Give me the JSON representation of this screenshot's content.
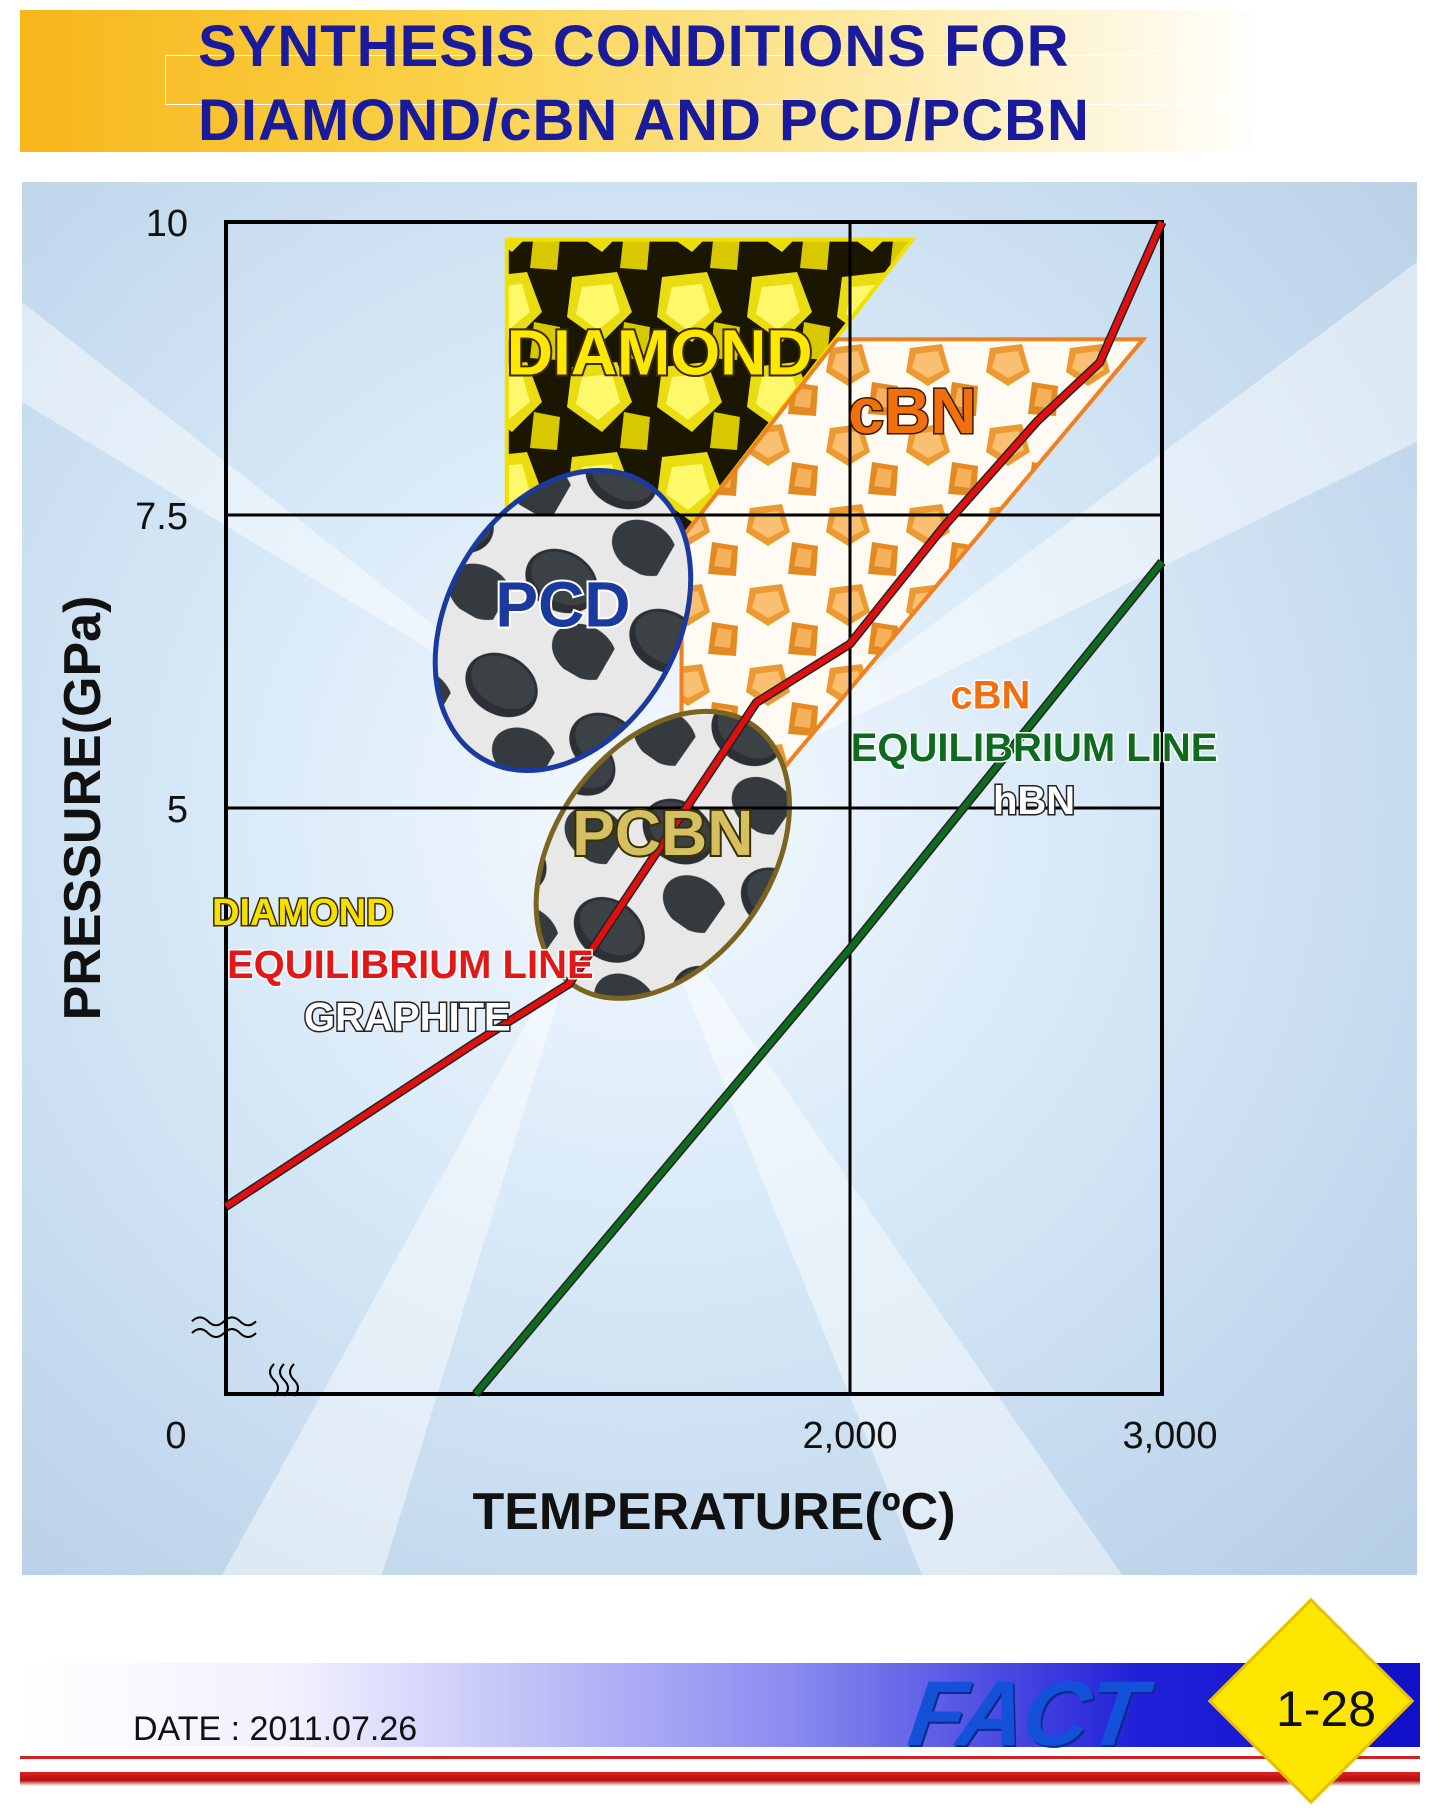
{
  "title": "SYNTHESIS CONDITIONS FOR\nDIAMOND/cBN AND PCD/PCBN",
  "footer": {
    "date": "DATE : 2011.07.26",
    "logo": "FACT",
    "page": "1-28"
  },
  "colors": {
    "title_text": "#1a1a9c",
    "diamond_line": "#e01010",
    "cbn_line": "#0d6a1e",
    "diamond_region": "#f2e000",
    "cbn_region": "#f08020",
    "pcd_outline": "#1a3aa0",
    "pcbn_outline": "#7a6420"
  },
  "chart_data": {
    "type": "line",
    "xlabel": "TEMPERATURE(ºC)",
    "ylabel": "PRESSURE(GPa)",
    "xlim": [
      0,
      3000
    ],
    "ylim": [
      0,
      10
    ],
    "x_ticks": [
      "0",
      "2,000",
      "3,000"
    ],
    "y_ticks": [
      "10",
      "7.5",
      "5"
    ],
    "grid": true,
    "axis_breaks": true,
    "series": [
      {
        "key": "diamond_line",
        "x": [
          0,
          400,
          800,
          1100,
          1400,
          1700,
          2000,
          2300,
          2600,
          2800,
          3000
        ],
        "y": [
          1.6,
          2.3,
          3.0,
          3.5,
          4.7,
          5.9,
          6.4,
          7.4,
          8.3,
          8.8,
          10.0
        ]
      },
      {
        "key": "cbn_line",
        "x": [
          800,
          2000,
          3000
        ],
        "y": [
          0.0,
          3.8,
          7.1
        ]
      }
    ],
    "regions": [
      {
        "label": "DIAMOND",
        "key": "diamond_region"
      },
      {
        "label": "cBN",
        "key": "cbn_region"
      },
      {
        "label": "PCD",
        "key": "pcd_outline"
      },
      {
        "label": "PCBN",
        "key": "pcbn_outline"
      }
    ],
    "annotations": {
      "diamond_eq": {
        "top": "DIAMOND",
        "middle": "EQUILIBRIUM LINE",
        "bottom": "GRAPHITE"
      },
      "cbn_eq": {
        "top": "cBN",
        "middle": "EQUILIBRIUM LINE",
        "bottom": "hBN"
      }
    }
  }
}
